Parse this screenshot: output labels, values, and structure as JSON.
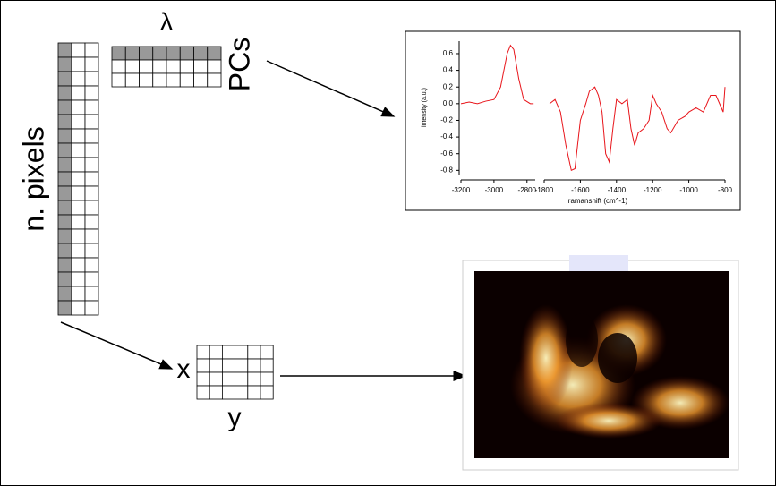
{
  "labels": {
    "lambda": "λ",
    "pcs": "PCs",
    "pixels": "n. pixels",
    "x": "x",
    "y": "y"
  },
  "spectrum": {
    "type": "line",
    "ylabel": "intensity (a.u.)",
    "xlabel": "ramanshift (cm^-1)",
    "color": "#e8141a",
    "ylim": [
      -0.85,
      0.75
    ],
    "yticks": [
      0.6,
      0.4,
      0.2,
      {
        "value": 0,
        "label": "0.0"
      },
      -0.2,
      -0.4,
      -0.6,
      -0.8
    ],
    "segments": [
      {
        "xlim": [
          -3200,
          -2750
        ],
        "xticks": [
          -3200,
          -3000,
          -2800
        ],
        "x": [
          -3200,
          -3150,
          -3100,
          -3050,
          -3000,
          -2960,
          -2920,
          -2900,
          -2880,
          -2850,
          -2820,
          -2780,
          -2760
        ],
        "values": [
          0.0,
          0.02,
          0.0,
          0.03,
          0.05,
          0.2,
          0.6,
          0.7,
          0.65,
          0.3,
          0.05,
          0.0,
          0.0
        ]
      },
      {
        "xlim": [
          -1800,
          -800
        ],
        "xticks": [
          -1800,
          -1600,
          -1400,
          -1200,
          -1000,
          -800
        ],
        "x": [
          -1770,
          -1740,
          -1710,
          -1680,
          -1650,
          -1630,
          -1600,
          -1570,
          -1550,
          -1520,
          -1500,
          -1480,
          -1460,
          -1440,
          -1420,
          -1400,
          -1370,
          -1340,
          -1320,
          -1300,
          -1280,
          -1250,
          -1220,
          -1200,
          -1180,
          -1150,
          -1120,
          -1100,
          -1060,
          -1020,
          -1000,
          -960,
          -920,
          -880,
          -850,
          -820,
          -810,
          -800
        ],
        "values": [
          0.0,
          0.05,
          -0.1,
          -0.5,
          -0.8,
          -0.78,
          -0.2,
          0.0,
          0.15,
          0.2,
          0.1,
          -0.1,
          -0.6,
          -0.7,
          -0.3,
          0.05,
          0.0,
          0.05,
          -0.3,
          -0.5,
          -0.35,
          -0.3,
          -0.2,
          0.1,
          0.0,
          -0.1,
          -0.3,
          -0.35,
          -0.2,
          -0.15,
          -0.1,
          -0.05,
          -0.1,
          0.1,
          0.1,
          -0.05,
          -0.1,
          0.2
        ]
      }
    ]
  }
}
